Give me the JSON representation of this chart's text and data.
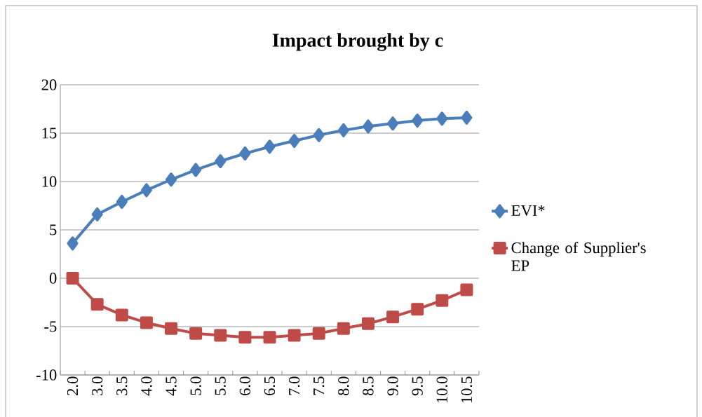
{
  "chart_data": {
    "type": "line",
    "title": "Impact brought by c",
    "categories": [
      "2.0",
      "3.0",
      "3.5",
      "4.0",
      "4.5",
      "5.0",
      "5.5",
      "6.0",
      "6.5",
      "7.0",
      "7.5",
      "8.0",
      "8.5",
      "9.0",
      "9.5",
      "10.0",
      "10.5"
    ],
    "series": [
      {
        "name": "EVI*",
        "color": "#4a7ebb",
        "marker": "diamond",
        "values": [
          3.6,
          6.6,
          7.9,
          9.1,
          10.2,
          11.2,
          12.1,
          12.9,
          13.6,
          14.2,
          14.8,
          15.3,
          15.7,
          16.0,
          16.3,
          16.5,
          16.6
        ]
      },
      {
        "name": "Change of Supplier's EP",
        "color": "#be4b48",
        "marker": "square",
        "values": [
          0.0,
          -2.7,
          -3.8,
          -4.6,
          -5.2,
          -5.7,
          -5.9,
          -6.1,
          -6.1,
          -5.9,
          -5.7,
          -5.2,
          -4.7,
          -4.0,
          -3.2,
          -2.3,
          -1.2
        ]
      }
    ],
    "ylim": [
      -10,
      20
    ],
    "yticks": [
      -10,
      -5,
      0,
      5,
      10,
      15,
      20
    ],
    "grid": "y",
    "legend": "right"
  }
}
